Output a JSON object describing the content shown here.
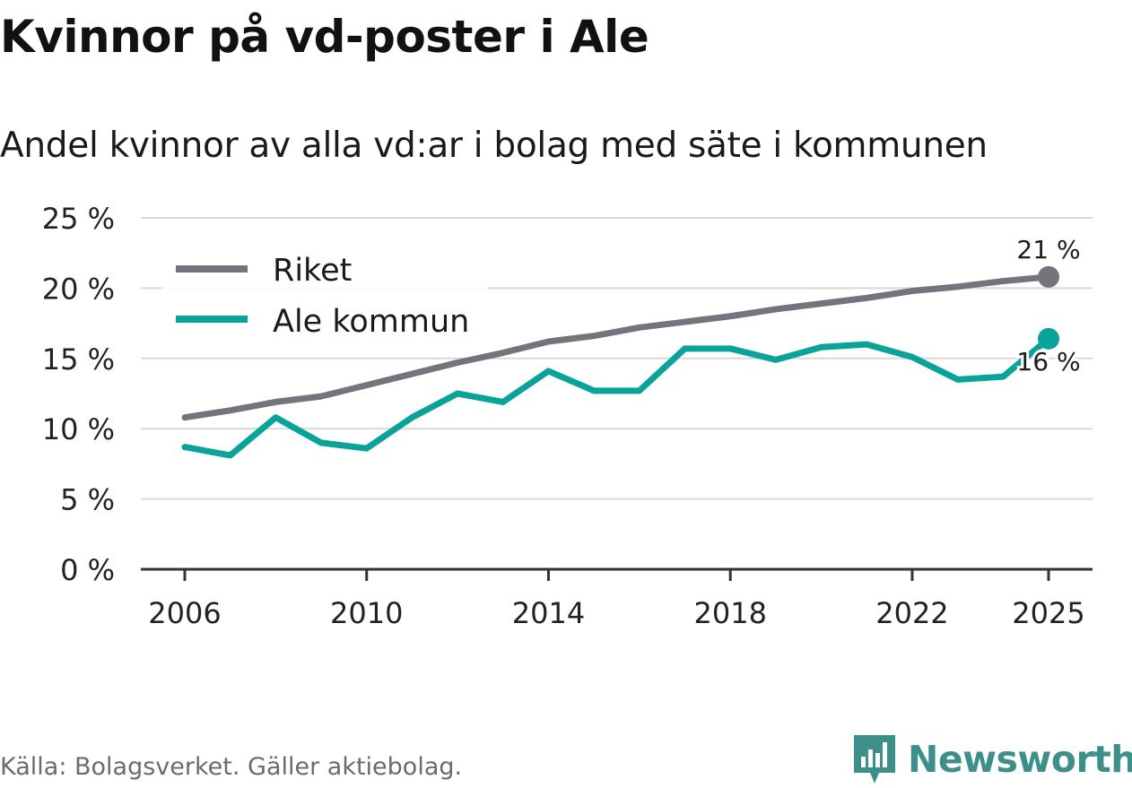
{
  "chart_data": {
    "type": "line",
    "title": "Kvinnor på vd-poster i Ale",
    "subtitle": "Andel kvinnor av alla vd:ar i bolag med säte i kommunen",
    "x": [
      2006,
      2007,
      2008,
      2009,
      2010,
      2011,
      2012,
      2013,
      2014,
      2015,
      2016,
      2017,
      2018,
      2019,
      2020,
      2021,
      2022,
      2023,
      2024,
      2025
    ],
    "xticks": [
      2006,
      2010,
      2014,
      2018,
      2022,
      2025
    ],
    "xtick_labels": [
      "2006",
      "2010",
      "2014",
      "2018",
      "2022",
      "2025"
    ],
    "xlim": [
      2005,
      2026
    ],
    "ylim": [
      0,
      25
    ],
    "yticks": [
      0,
      5,
      10,
      15,
      20,
      25
    ],
    "ytick_labels": [
      "0 %",
      "5 %",
      "10 %",
      "15 %",
      "20 %",
      "25 %"
    ],
    "grid": true,
    "legend_position": "top-left",
    "series": [
      {
        "name": "Riket",
        "color": "#75737b",
        "values": [
          10.8,
          11.3,
          11.9,
          12.3,
          13.1,
          13.9,
          14.7,
          15.4,
          16.2,
          16.6,
          17.2,
          17.6,
          18.0,
          18.5,
          18.9,
          19.3,
          19.8,
          20.1,
          20.5,
          20.8
        ],
        "end_label": "21 %"
      },
      {
        "name": "Ale kommun",
        "color": "#0aa39a",
        "values": [
          8.7,
          8.1,
          10.8,
          9.0,
          8.6,
          10.8,
          12.5,
          11.9,
          14.1,
          12.7,
          12.7,
          15.7,
          15.7,
          14.9,
          15.8,
          16.0,
          15.1,
          13.5,
          13.7,
          16.4
        ],
        "end_label": "16 %"
      }
    ]
  },
  "footer": {
    "source": "Källa: Bolagsverket. Gäller aktiebolag.",
    "brand": "Newsworthy",
    "brand_color": "#3d8f8a"
  },
  "icons": {
    "brand_logo": "bar-chart-badge-icon"
  }
}
